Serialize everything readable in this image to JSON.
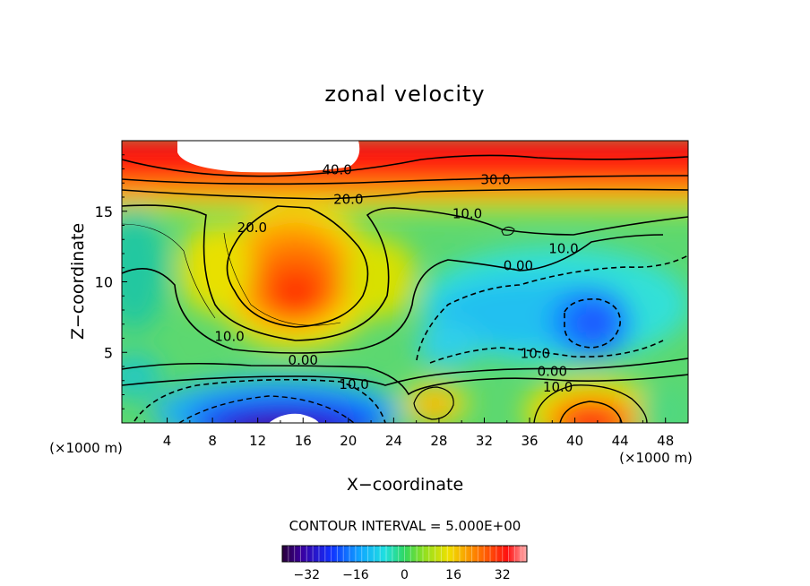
{
  "chart_data": {
    "type": "contour",
    "title": "zonal velocity",
    "xlabel": "X−coordinate",
    "ylabel": "Z−coordinate",
    "x_unit_label": "(×1000 m)",
    "z_unit_label": "(×1000 m)",
    "xlim": [
      0,
      50
    ],
    "zlim": [
      0,
      20
    ],
    "x_ticks": [
      "4",
      "8",
      "12",
      "16",
      "20",
      "24",
      "28",
      "32",
      "36",
      "40",
      "44",
      "48"
    ],
    "z_ticks": [
      "5",
      "10",
      "15"
    ],
    "contour_interval_text": "CONTOUR INTERVAL = 5.000E+00",
    "colorbar": {
      "range": [
        -40,
        40
      ],
      "ticks": [
        "−32",
        "−16",
        "0",
        "16",
        "32"
      ],
      "tick_values": [
        -32,
        -16,
        0,
        16,
        32
      ]
    },
    "contour_labels": [
      {
        "text": "40.0",
        "x": 19,
        "z": 18.0
      },
      {
        "text": "30.0",
        "x": 33,
        "z": 17.3
      },
      {
        "text": "20.0",
        "x": 20,
        "z": 15.9
      },
      {
        "text": "20.0",
        "x": 11.5,
        "z": 13.9
      },
      {
        "text": "10.0",
        "x": 30.5,
        "z": 14.9
      },
      {
        "text": "10.0",
        "x": 39,
        "z": 12.4
      },
      {
        "text": "0.00",
        "x": 35,
        "z": 11.2
      },
      {
        "text": "10.0",
        "x": 9.5,
        "z": 6.2
      },
      {
        "text": "0.00",
        "x": 16,
        "z": 4.5
      },
      {
        "text": "10.0",
        "x": 20.5,
        "z": 2.8
      },
      {
        "text": "10.0",
        "x": 36.5,
        "z": 5.0
      },
      {
        "text": "0.00",
        "x": 38,
        "z": 3.7
      },
      {
        "text": "10.0",
        "x": 38.5,
        "z": 2.6
      }
    ],
    "features": [
      {
        "type": "jet_max",
        "x": 13,
        "z": 18.5,
        "value": 45
      },
      {
        "type": "max",
        "x": 15,
        "z": 9.0,
        "value": 28
      },
      {
        "type": "min",
        "x": 15,
        "z": 0.3,
        "value": -35
      },
      {
        "type": "min",
        "x": 42,
        "z": 7.0,
        "value": -22
      },
      {
        "type": "max",
        "x": 41.5,
        "z": 0.5,
        "value": 32
      },
      {
        "type": "max",
        "x": 27.7,
        "z": 1.5,
        "value": 18
      }
    ]
  }
}
